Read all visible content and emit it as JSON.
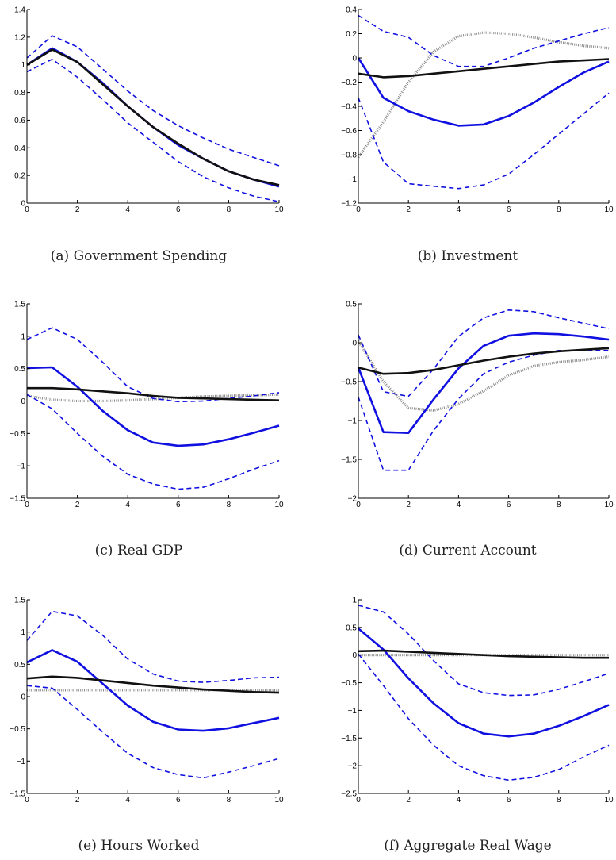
{
  "chart_data": [
    {
      "type": "line",
      "caption": "(a) Government Spending",
      "x": [
        0,
        1,
        2,
        3,
        4,
        5,
        6,
        7,
        8,
        9,
        10
      ],
      "xlim": [
        0,
        10
      ],
      "ylim": [
        0,
        1.4
      ],
      "xticks": [
        "0",
        "2",
        "4",
        "6",
        "8",
        "10"
      ],
      "yticks": [
        "0",
        "0.2",
        "0.4",
        "0.6",
        "0.8",
        "1",
        "1.2",
        "1.4"
      ],
      "series": [
        {
          "style": "blue-solid",
          "values": [
            1.0,
            1.12,
            1.02,
            0.87,
            0.7,
            0.55,
            0.42,
            0.32,
            0.23,
            0.17,
            0.12
          ]
        },
        {
          "style": "blue-dashed",
          "values": [
            1.05,
            1.21,
            1.13,
            0.97,
            0.81,
            0.67,
            0.56,
            0.47,
            0.39,
            0.33,
            0.27
          ]
        },
        {
          "style": "blue-dashed",
          "values": [
            0.95,
            1.04,
            0.91,
            0.75,
            0.58,
            0.44,
            0.3,
            0.19,
            0.11,
            0.05,
            0.01
          ]
        },
        {
          "style": "black-solid",
          "values": [
            1.0,
            1.11,
            1.02,
            0.86,
            0.7,
            0.55,
            0.43,
            0.32,
            0.23,
            0.17,
            0.13
          ]
        }
      ]
    },
    {
      "type": "line",
      "caption": "(b) Investment",
      "x": [
        0,
        1,
        2,
        3,
        4,
        5,
        6,
        7,
        8,
        9,
        10
      ],
      "xlim": [
        0,
        10
      ],
      "ylim": [
        -1.2,
        0.4
      ],
      "xticks": [
        "0",
        "2",
        "4",
        "6",
        "8",
        "10"
      ],
      "yticks": [
        "−1.2",
        "−1",
        "−0.8",
        "−0.6",
        "−0.4",
        "−0.2",
        "0",
        "0.2",
        "0.4"
      ],
      "series": [
        {
          "style": "gray-dotted",
          "values": [
            -0.82,
            -0.53,
            -0.2,
            0.05,
            0.18,
            0.21,
            0.2,
            0.17,
            0.13,
            0.1,
            0.08
          ]
        },
        {
          "style": "blue-dashed",
          "values": [
            0.35,
            0.22,
            0.17,
            0.02,
            -0.07,
            -0.07,
            0.0,
            0.08,
            0.14,
            0.2,
            0.25
          ]
        },
        {
          "style": "blue-dashed",
          "values": [
            -0.33,
            -0.86,
            -1.04,
            -1.06,
            -1.08,
            -1.05,
            -0.96,
            -0.8,
            -0.63,
            -0.46,
            -0.29
          ]
        },
        {
          "style": "blue-solid",
          "values": [
            0.0,
            -0.33,
            -0.44,
            -0.51,
            -0.56,
            -0.55,
            -0.48,
            -0.37,
            -0.24,
            -0.12,
            -0.03
          ]
        },
        {
          "style": "black-solid",
          "values": [
            -0.13,
            -0.16,
            -0.15,
            -0.13,
            -0.11,
            -0.09,
            -0.07,
            -0.05,
            -0.03,
            -0.02,
            -0.01
          ]
        }
      ]
    },
    {
      "type": "line",
      "caption": "(c) Real GDP",
      "x": [
        0,
        1,
        2,
        3,
        4,
        5,
        6,
        7,
        8,
        9,
        10
      ],
      "xlim": [
        0,
        10
      ],
      "ylim": [
        -1.5,
        1.5
      ],
      "xticks": [
        "0",
        "2",
        "4",
        "6",
        "8",
        "10"
      ],
      "yticks": [
        "−1.5",
        "−1",
        "−0.5",
        "0",
        "0.5",
        "1",
        "1.5"
      ],
      "series": [
        {
          "style": "gray-dotted",
          "values": [
            0.08,
            0.02,
            0.0,
            0.0,
            0.01,
            0.03,
            0.05,
            0.07,
            0.08,
            0.09,
            0.1
          ]
        },
        {
          "style": "blue-dashed",
          "values": [
            0.95,
            1.13,
            0.95,
            0.6,
            0.22,
            0.04,
            -0.01,
            0.0,
            0.04,
            0.08,
            0.13
          ]
        },
        {
          "style": "blue-dashed",
          "values": [
            0.1,
            -0.12,
            -0.5,
            -0.85,
            -1.13,
            -1.28,
            -1.36,
            -1.33,
            -1.2,
            -1.05,
            -0.92
          ]
        },
        {
          "style": "blue-solid",
          "values": [
            0.51,
            0.52,
            0.22,
            -0.15,
            -0.45,
            -0.64,
            -0.69,
            -0.67,
            -0.59,
            -0.49,
            -0.38
          ]
        },
        {
          "style": "black-solid",
          "values": [
            0.2,
            0.2,
            0.18,
            0.15,
            0.12,
            0.08,
            0.05,
            0.04,
            0.03,
            0.02,
            0.01
          ]
        }
      ]
    },
    {
      "type": "line",
      "caption": "(d) Current Account",
      "x": [
        0,
        1,
        2,
        3,
        4,
        5,
        6,
        7,
        8,
        9,
        10
      ],
      "xlim": [
        0,
        10
      ],
      "ylim": [
        -2,
        0.5
      ],
      "xticks": [
        "0",
        "2",
        "4",
        "6",
        "8",
        "10"
      ],
      "yticks": [
        "−2",
        "−1.5",
        "−1",
        "−0.5",
        "0",
        "0.5"
      ],
      "series": [
        {
          "style": "gray-dotted",
          "values": [
            0.02,
            -0.5,
            -0.84,
            -0.87,
            -0.79,
            -0.62,
            -0.42,
            -0.3,
            -0.25,
            -0.22,
            -0.18
          ]
        },
        {
          "style": "blue-dashed",
          "values": [
            0.1,
            -0.63,
            -0.69,
            -0.34,
            0.08,
            0.32,
            0.42,
            0.4,
            0.32,
            0.25,
            0.18
          ]
        },
        {
          "style": "blue-dashed",
          "values": [
            -0.7,
            -1.64,
            -1.64,
            -1.13,
            -0.72,
            -0.4,
            -0.25,
            -0.16,
            -0.1,
            -0.1,
            -0.1
          ]
        },
        {
          "style": "blue-solid",
          "values": [
            -0.32,
            -1.15,
            -1.16,
            -0.73,
            -0.33,
            -0.04,
            0.09,
            0.12,
            0.11,
            0.08,
            0.04
          ]
        },
        {
          "style": "black-solid",
          "values": [
            -0.32,
            -0.4,
            -0.39,
            -0.35,
            -0.29,
            -0.23,
            -0.18,
            -0.14,
            -0.11,
            -0.09,
            -0.07
          ]
        }
      ]
    },
    {
      "type": "line",
      "caption": "(e) Hours Worked",
      "x": [
        0,
        1,
        2,
        3,
        4,
        5,
        6,
        7,
        8,
        9,
        10
      ],
      "xlim": [
        0,
        10
      ],
      "ylim": [
        -1.5,
        1.5
      ],
      "xticks": [
        "0",
        "2",
        "4",
        "6",
        "8",
        "10"
      ],
      "yticks": [
        "−1.5",
        "−1",
        "−0.5",
        "0",
        "0.5",
        "1",
        "1.5"
      ],
      "series": [
        {
          "style": "gray-dotted",
          "values": [
            0.1,
            0.1,
            0.1,
            0.1,
            0.1,
            0.1,
            0.1,
            0.1,
            0.1,
            0.1,
            0.1
          ]
        },
        {
          "style": "blue-dashed",
          "values": [
            0.87,
            1.32,
            1.25,
            0.95,
            0.58,
            0.35,
            0.24,
            0.22,
            0.25,
            0.29,
            0.3
          ]
        },
        {
          "style": "blue-dashed",
          "values": [
            0.17,
            0.13,
            -0.2,
            -0.55,
            -0.88,
            -1.1,
            -1.21,
            -1.26,
            -1.17,
            -1.07,
            -0.96
          ]
        },
        {
          "style": "blue-solid",
          "values": [
            0.53,
            0.72,
            0.54,
            0.2,
            -0.14,
            -0.39,
            -0.51,
            -0.53,
            -0.49,
            -0.41,
            -0.33
          ]
        },
        {
          "style": "black-solid",
          "values": [
            0.28,
            0.31,
            0.29,
            0.25,
            0.21,
            0.17,
            0.14,
            0.11,
            0.09,
            0.07,
            0.06
          ]
        }
      ]
    },
    {
      "type": "line",
      "caption": "(f) Aggregate Real Wage",
      "x": [
        0,
        1,
        2,
        3,
        4,
        5,
        6,
        7,
        8,
        9,
        10
      ],
      "xlim": [
        0,
        10
      ],
      "ylim": [
        -2.5,
        1
      ],
      "xticks": [
        "0",
        "2",
        "4",
        "6",
        "8",
        "10"
      ],
      "yticks": [
        "−2.5",
        "−2",
        "−1.5",
        "−1",
        "−0.5",
        "0",
        "0.5",
        "1"
      ],
      "series": [
        {
          "style": "gray-dotted",
          "values": [
            0.0,
            0.0,
            0.0,
            0.0,
            0.0,
            0.0,
            0.0,
            0.0,
            0.0,
            0.0,
            0.0
          ]
        },
        {
          "style": "blue-dashed",
          "values": [
            0.9,
            0.78,
            0.38,
            -0.1,
            -0.52,
            -0.68,
            -0.73,
            -0.72,
            -0.62,
            -0.48,
            -0.33
          ]
        },
        {
          "style": "blue-dashed",
          "values": [
            0.02,
            -0.55,
            -1.15,
            -1.63,
            -2.0,
            -2.18,
            -2.26,
            -2.21,
            -2.07,
            -1.84,
            -1.63
          ]
        },
        {
          "style": "blue-solid",
          "values": [
            0.48,
            0.1,
            -0.42,
            -0.87,
            -1.23,
            -1.42,
            -1.47,
            -1.42,
            -1.28,
            -1.1,
            -0.9
          ]
        },
        {
          "style": "black-solid",
          "values": [
            0.07,
            0.08,
            0.06,
            0.04,
            0.02,
            0.0,
            -0.02,
            -0.03,
            -0.04,
            -0.05,
            -0.05
          ]
        }
      ]
    }
  ],
  "line_colors": {
    "blue": "#1010e0",
    "black": "#111111",
    "gray": "#8a8a8a"
  }
}
